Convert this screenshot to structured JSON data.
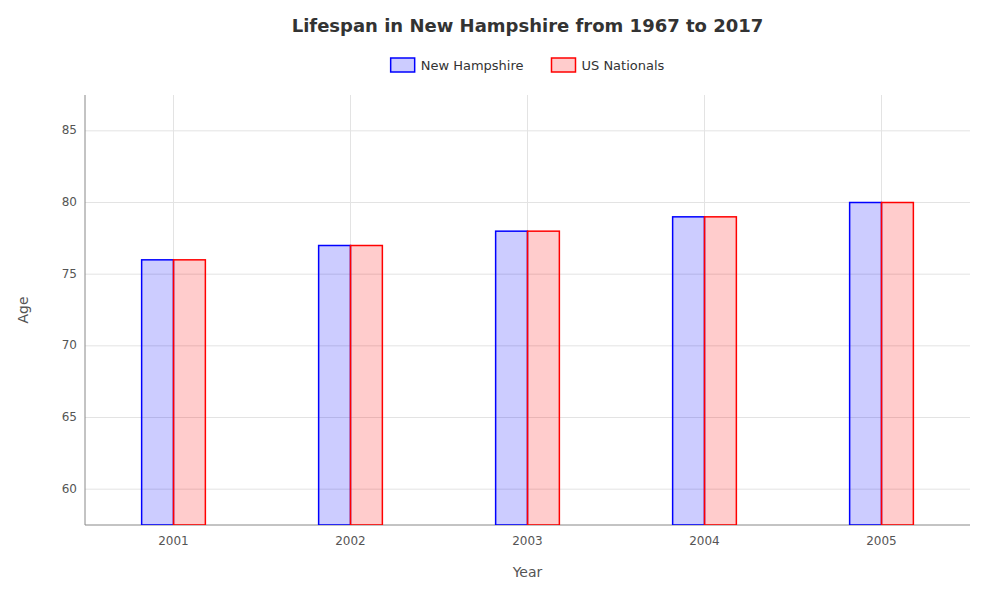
{
  "chart_data": {
    "type": "bar",
    "title": "Lifespan in New Hampshire from 1967 to 2017",
    "x_label": "Year",
    "y_label": "Age",
    "categories": [
      "2001",
      "2002",
      "2003",
      "2004",
      "2005"
    ],
    "series": [
      {
        "name": "New Hampshire",
        "color": "#0000ff",
        "values": [
          76,
          77,
          78,
          79,
          80
        ]
      },
      {
        "name": "US Nationals",
        "color": "#ff0000",
        "values": [
          76,
          77,
          78,
          79,
          80
        ]
      }
    ],
    "ylim": [
      57.5,
      87.5
    ],
    "yticks": [
      60,
      65,
      70,
      75,
      80,
      85
    ],
    "grid": true,
    "legend": "top"
  }
}
